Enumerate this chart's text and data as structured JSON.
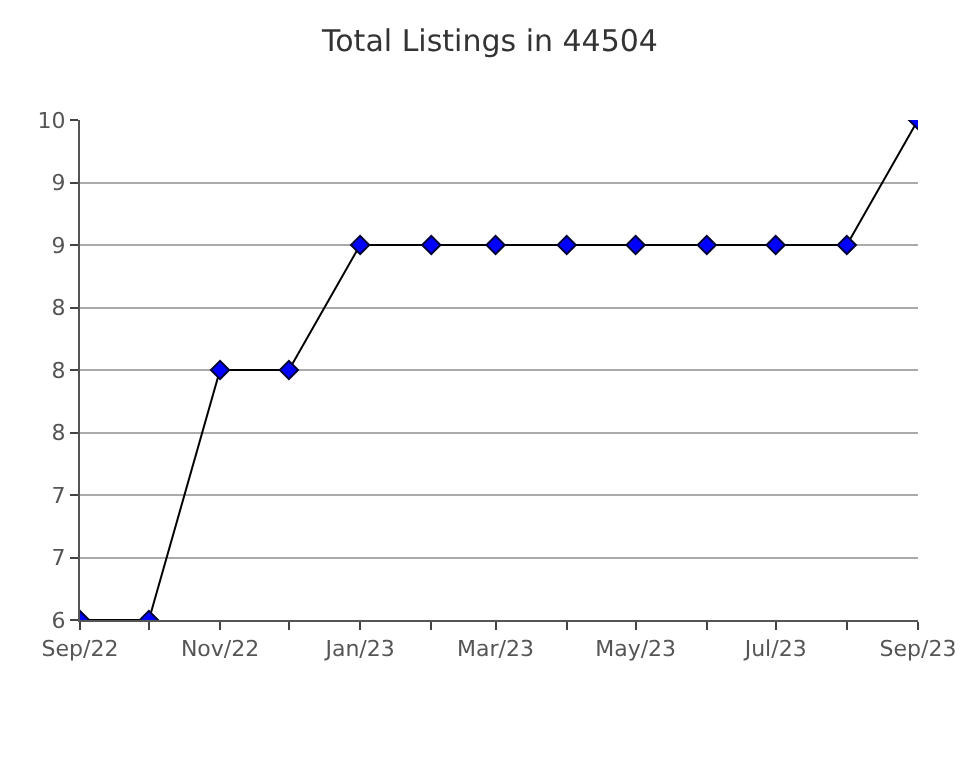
{
  "chart_data": {
    "type": "line",
    "title": "Total Listings in 44504",
    "x": [
      "2022-09",
      "2022-10",
      "2022-11",
      "2022-12",
      "2023-01",
      "2023-02",
      "2023-03",
      "2023-04",
      "2023-05",
      "2023-06",
      "2023-07",
      "2023-08",
      "2023-09"
    ],
    "series": [
      {
        "color": "#0000ff",
        "values": [
          6,
          6,
          8,
          8,
          9,
          9,
          9,
          9,
          9,
          9,
          9,
          9,
          10
        ]
      }
    ],
    "xlim": [
      "2022-09",
      "2023-09"
    ],
    "xticks": [
      {
        "value": "2022-09",
        "label": "Sep/22"
      },
      {
        "value": "2022-10",
        "label": null
      },
      {
        "value": "2022-11",
        "label": "Nov/22"
      },
      {
        "value": "2022-12",
        "label": null
      },
      {
        "value": "2023-01",
        "label": "Jan/23"
      },
      {
        "value": "2023-02",
        "label": null
      },
      {
        "value": "2023-03",
        "label": "Mar/23"
      },
      {
        "value": "2023-04",
        "label": null
      },
      {
        "value": "2023-05",
        "label": "May/23"
      },
      {
        "value": "2023-06",
        "label": null
      },
      {
        "value": "2023-07",
        "label": "Jul/23"
      },
      {
        "value": "2023-08",
        "label": null
      },
      {
        "value": "2023-09",
        "label": "Sep/23"
      }
    ],
    "ylim": [
      6,
      10
    ],
    "yticks": [
      6,
      {
        "value": 6.5,
        "label": "7"
      },
      7,
      {
        "value": 7.5,
        "label": "8"
      },
      8,
      {
        "value": 8.5,
        "label": "8"
      },
      9,
      {
        "value": 9.5,
        "label": "9"
      },
      10
    ],
    "grid": "y",
    "marker": "diamond",
    "line_style": "solid",
    "legend": false
  }
}
